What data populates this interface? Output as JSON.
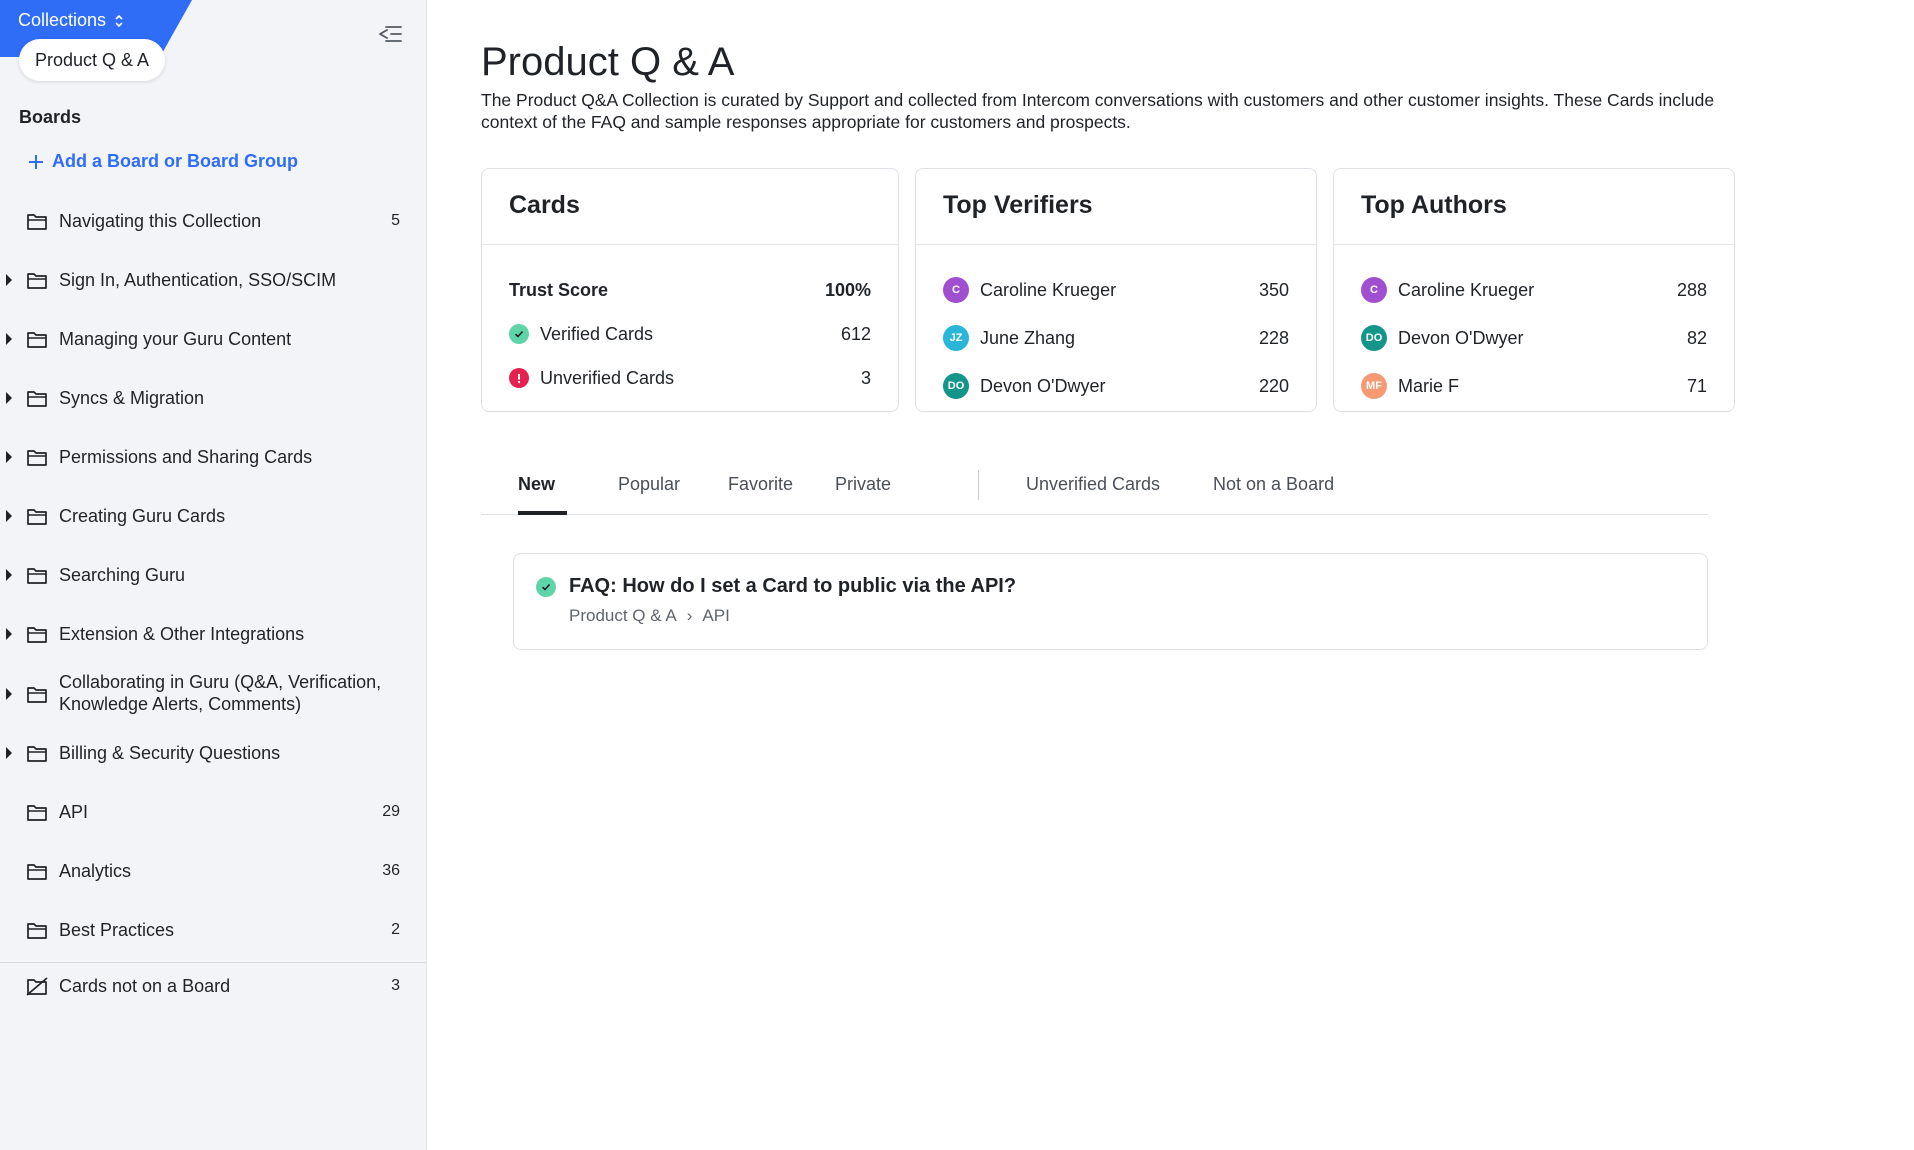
{
  "sidebar": {
    "collections_label": "Collections",
    "collection_name": "Product Q & A",
    "boards_heading": "Boards",
    "add_board_label": "Add a Board or Board Group",
    "items": [
      {
        "label": "Navigating this Collection",
        "count": "5",
        "expandable": false
      },
      {
        "label": "Sign In, Authentication, SSO/SCIM",
        "count": "",
        "expandable": true
      },
      {
        "label": "Managing your Guru Content",
        "count": "",
        "expandable": true
      },
      {
        "label": "Syncs & Migration",
        "count": "",
        "expandable": true
      },
      {
        "label": "Permissions and Sharing Cards",
        "count": "",
        "expandable": true
      },
      {
        "label": "Creating Guru Cards",
        "count": "",
        "expandable": true
      },
      {
        "label": "Searching Guru",
        "count": "",
        "expandable": true
      },
      {
        "label": "Extension & Other Integrations",
        "count": "",
        "expandable": true
      },
      {
        "label": "Collaborating in Guru (Q&A, Verification, Knowledge Alerts, Comments)",
        "count": "",
        "expandable": true
      },
      {
        "label": "Billing & Security Questions",
        "count": "",
        "expandable": true
      },
      {
        "label": "API",
        "count": "29",
        "expandable": false
      },
      {
        "label": "Analytics",
        "count": "36",
        "expandable": false
      },
      {
        "label": "Best Practices",
        "count": "2",
        "expandable": false
      }
    ],
    "not_on_board": {
      "label": "Cards not on a Board",
      "count": "3"
    }
  },
  "main": {
    "title": "Product Q & A",
    "description": "The Product Q&A Collection is curated by Support and collected from Intercom conversations with customers and other customer insights. These Cards include context of the FAQ and sample responses appropriate for customers and prospects.",
    "cards_box": {
      "title": "Cards",
      "trust_label": "Trust Score",
      "trust_value": "100%",
      "verified_label": "Verified Cards",
      "verified_value": "612",
      "unverified_label": "Unverified Cards",
      "unverified_value": "3"
    },
    "verifiers_box": {
      "title": "Top Verifiers",
      "people": [
        {
          "initials": "C",
          "name": "Caroline Krueger",
          "value": "350",
          "color": "#a04fd0"
        },
        {
          "initials": "JZ",
          "name": "June Zhang",
          "value": "228",
          "color": "#29b6d8"
        },
        {
          "initials": "DO",
          "name": "Devon O'Dwyer",
          "value": "220",
          "color": "#14958a"
        }
      ]
    },
    "authors_box": {
      "title": "Top Authors",
      "people": [
        {
          "initials": "C",
          "name": "Caroline Krueger",
          "value": "288",
          "color": "#a04fd0"
        },
        {
          "initials": "DO",
          "name": "Devon O'Dwyer",
          "value": "82",
          "color": "#14958a"
        },
        {
          "initials": "MF",
          "name": "Marie F",
          "value": "71",
          "color": "#f59a72"
        }
      ]
    },
    "tabs": [
      "New",
      "Popular",
      "Favorite",
      "Private",
      "Unverified Cards",
      "Not on a Board"
    ],
    "active_tab": "New",
    "result_card": {
      "title": "FAQ: How do I set a Card to public via the API?",
      "crumb_collection": "Product Q & A",
      "crumb_separator": "›",
      "crumb_board": "API"
    }
  },
  "colors": {
    "accent": "#2f6df6",
    "verified": "#5fd4a8",
    "unverified": "#e5214f"
  }
}
